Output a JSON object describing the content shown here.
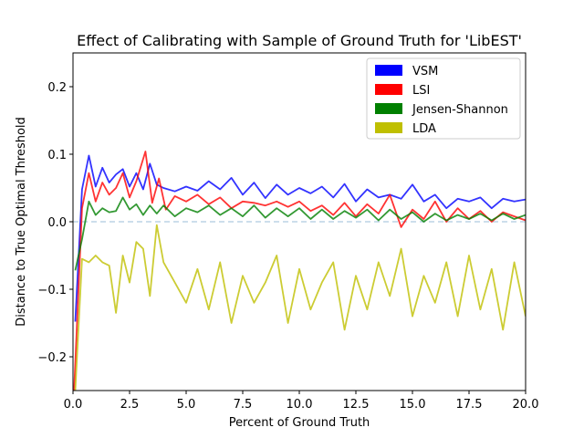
{
  "chart_data": {
    "type": "line",
    "title": "Effect of Calibrating with Sample of Ground Truth for 'LibEST'",
    "xlabel": "Percent of Ground Truth",
    "ylabel": "Distance to True Optimal Threshold",
    "xlim": [
      0,
      20
    ],
    "ylim": [
      -0.25,
      0.25
    ],
    "xticks": [
      0,
      2.5,
      5,
      7.5,
      10,
      12.5,
      15,
      17.5,
      20
    ],
    "xtick_labels": [
      "0.0",
      "2.5",
      "5.0",
      "7.5",
      "10.0",
      "12.5",
      "15.0",
      "17.5",
      "20.0"
    ],
    "yticks": [
      -0.2,
      -0.1,
      0.0,
      0.1,
      0.2
    ],
    "ytick_labels": [
      "−0.2",
      "−0.1",
      "0.0",
      "0.1",
      "0.2"
    ],
    "reference_line": {
      "y": 0.0,
      "color": "#bcd3e6",
      "style": "dashed"
    },
    "legend_position": "upper right",
    "series": [
      {
        "name": "VSM",
        "color": "#0000ff",
        "x": [
          0.1,
          0.4,
          0.7,
          1.0,
          1.3,
          1.6,
          1.9,
          2.2,
          2.5,
          2.8,
          3.1,
          3.4,
          3.7,
          4.0,
          4.5,
          5.0,
          5.5,
          6.0,
          6.5,
          7.0,
          7.5,
          8.0,
          8.5,
          9.0,
          9.5,
          10.0,
          10.5,
          11.0,
          11.5,
          12.0,
          12.5,
          13.0,
          13.5,
          14.0,
          14.5,
          15.0,
          15.5,
          16.0,
          16.5,
          17.0,
          17.5,
          18.0,
          18.5,
          19.0,
          19.5,
          20.0
        ],
        "y": [
          -0.148,
          0.048,
          0.098,
          0.052,
          0.08,
          0.058,
          0.07,
          0.078,
          0.052,
          0.072,
          0.048,
          0.086,
          0.055,
          0.05,
          0.045,
          0.052,
          0.046,
          0.06,
          0.048,
          0.065,
          0.04,
          0.058,
          0.035,
          0.055,
          0.04,
          0.05,
          0.042,
          0.052,
          0.036,
          0.056,
          0.03,
          0.048,
          0.036,
          0.04,
          0.034,
          0.055,
          0.03,
          0.04,
          0.02,
          0.034,
          0.03,
          0.036,
          0.02,
          0.034,
          0.03,
          0.033
        ]
      },
      {
        "name": "LSI",
        "color": "#ff0000",
        "x": [
          0.05,
          0.4,
          0.7,
          1.0,
          1.3,
          1.6,
          1.9,
          2.2,
          2.5,
          2.8,
          3.2,
          3.5,
          3.8,
          4.1,
          4.5,
          5.0,
          5.5,
          6.0,
          6.5,
          7.0,
          7.5,
          8.0,
          8.5,
          9.0,
          9.5,
          10.0,
          10.5,
          11.0,
          11.5,
          12.0,
          12.5,
          13.0,
          13.5,
          14.0,
          14.5,
          15.0,
          15.5,
          16.0,
          16.5,
          17.0,
          17.5,
          18.0,
          18.5,
          19.0,
          19.5,
          20.0
        ],
        "y": [
          -0.25,
          0.02,
          0.072,
          0.03,
          0.058,
          0.04,
          0.05,
          0.072,
          0.036,
          0.06,
          0.104,
          0.028,
          0.064,
          0.018,
          0.038,
          0.03,
          0.04,
          0.026,
          0.036,
          0.02,
          0.03,
          0.028,
          0.024,
          0.03,
          0.022,
          0.03,
          0.016,
          0.024,
          0.01,
          0.028,
          0.008,
          0.026,
          0.012,
          0.04,
          -0.008,
          0.018,
          0.004,
          0.03,
          0.0,
          0.02,
          0.004,
          0.016,
          0.0,
          0.014,
          0.008,
          0.002
        ]
      },
      {
        "name": "Jensen-Shannon",
        "color": "#008000",
        "x": [
          0.1,
          0.4,
          0.7,
          1.0,
          1.3,
          1.6,
          1.9,
          2.2,
          2.5,
          2.8,
          3.1,
          3.4,
          3.7,
          4.0,
          4.5,
          5.0,
          5.5,
          6.0,
          6.5,
          7.0,
          7.5,
          8.0,
          8.5,
          9.0,
          9.5,
          10.0,
          10.5,
          11.0,
          11.5,
          12.0,
          12.5,
          13.0,
          13.5,
          14.0,
          14.5,
          15.0,
          15.5,
          16.0,
          16.5,
          17.0,
          17.5,
          18.0,
          18.5,
          19.0,
          19.5,
          20.0
        ],
        "y": [
          -0.072,
          -0.026,
          0.03,
          0.01,
          0.02,
          0.014,
          0.016,
          0.036,
          0.018,
          0.026,
          0.01,
          0.024,
          0.012,
          0.024,
          0.008,
          0.02,
          0.014,
          0.024,
          0.01,
          0.02,
          0.008,
          0.024,
          0.006,
          0.02,
          0.008,
          0.02,
          0.004,
          0.018,
          0.004,
          0.016,
          0.006,
          0.018,
          0.002,
          0.018,
          0.004,
          0.014,
          0.0,
          0.012,
          0.002,
          0.01,
          0.004,
          0.012,
          0.002,
          0.012,
          0.004,
          0.01
        ]
      },
      {
        "name": "LDA",
        "color": "#bfbf00",
        "x": [
          0.1,
          0.4,
          0.7,
          1.0,
          1.3,
          1.6,
          1.9,
          2.2,
          2.5,
          2.8,
          3.1,
          3.4,
          3.7,
          4.0,
          4.5,
          5.0,
          5.5,
          6.0,
          6.5,
          7.0,
          7.5,
          8.0,
          8.5,
          9.0,
          9.5,
          10.0,
          10.5,
          11.0,
          11.5,
          12.0,
          12.5,
          13.0,
          13.5,
          14.0,
          14.5,
          15.0,
          15.5,
          16.0,
          16.5,
          17.0,
          17.5,
          18.0,
          18.5,
          19.0,
          19.5,
          20.0
        ],
        "y": [
          -0.25,
          -0.055,
          -0.06,
          -0.05,
          -0.06,
          -0.065,
          -0.135,
          -0.05,
          -0.09,
          -0.03,
          -0.04,
          -0.11,
          -0.005,
          -0.06,
          -0.09,
          -0.12,
          -0.07,
          -0.13,
          -0.06,
          -0.15,
          -0.08,
          -0.12,
          -0.09,
          -0.05,
          -0.15,
          -0.07,
          -0.13,
          -0.09,
          -0.06,
          -0.16,
          -0.08,
          -0.13,
          -0.06,
          -0.11,
          -0.04,
          -0.14,
          -0.08,
          -0.12,
          -0.06,
          -0.14,
          -0.05,
          -0.13,
          -0.07,
          -0.16,
          -0.06,
          -0.14
        ]
      }
    ]
  }
}
